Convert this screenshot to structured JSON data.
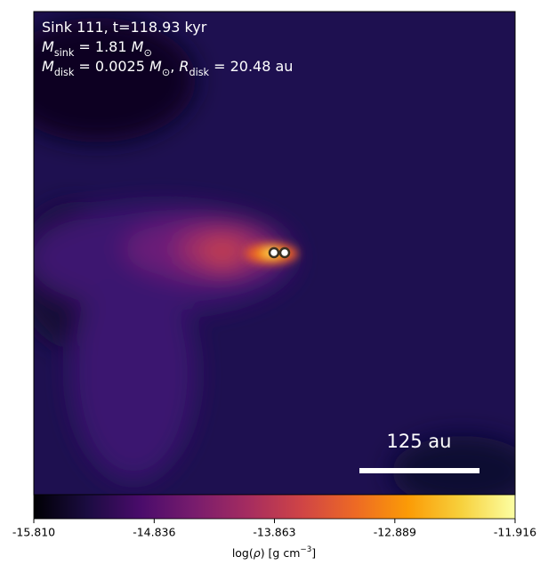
{
  "chart_data": {
    "type": "heatmap",
    "annotations": [
      [
        {
          "t": "Sink 111, t=118.93 kyr"
        }
      ],
      [
        {
          "i": "M"
        },
        {
          "sub": "sink"
        },
        {
          "t": " = 1.81 "
        },
        {
          "i": "M"
        },
        {
          "sub": "⊙"
        }
      ],
      [
        {
          "i": "M"
        },
        {
          "sub": "disk"
        },
        {
          "t": " = 0.0025 "
        },
        {
          "i": "M"
        },
        {
          "sub": "⊙"
        },
        {
          "t": ", "
        },
        {
          "i": "R"
        },
        {
          "sub": "disk"
        },
        {
          "t": " = 20.48 au"
        }
      ]
    ],
    "scale_bar": "125 au",
    "colorbar": {
      "label": [
        {
          "t": "log("
        },
        {
          "i": "ρ"
        },
        {
          "t": ") [g cm"
        },
        {
          "sup": "−3"
        },
        {
          "t": "]"
        }
      ],
      "lim": [
        -15.81,
        -11.916
      ],
      "ticks": [
        {
          "value": -15.81,
          "label": "-15.810"
        },
        -14.836,
        -13.863,
        -12.889,
        -11.916
      ],
      "colormap": [
        "#000004",
        "#1b0c41",
        "#4a0c6b",
        "#781c6d",
        "#a52c60",
        "#cf4446",
        "#ed6925",
        "#fb9b06",
        "#f7d13d",
        "#fcffa4"
      ]
    }
  }
}
